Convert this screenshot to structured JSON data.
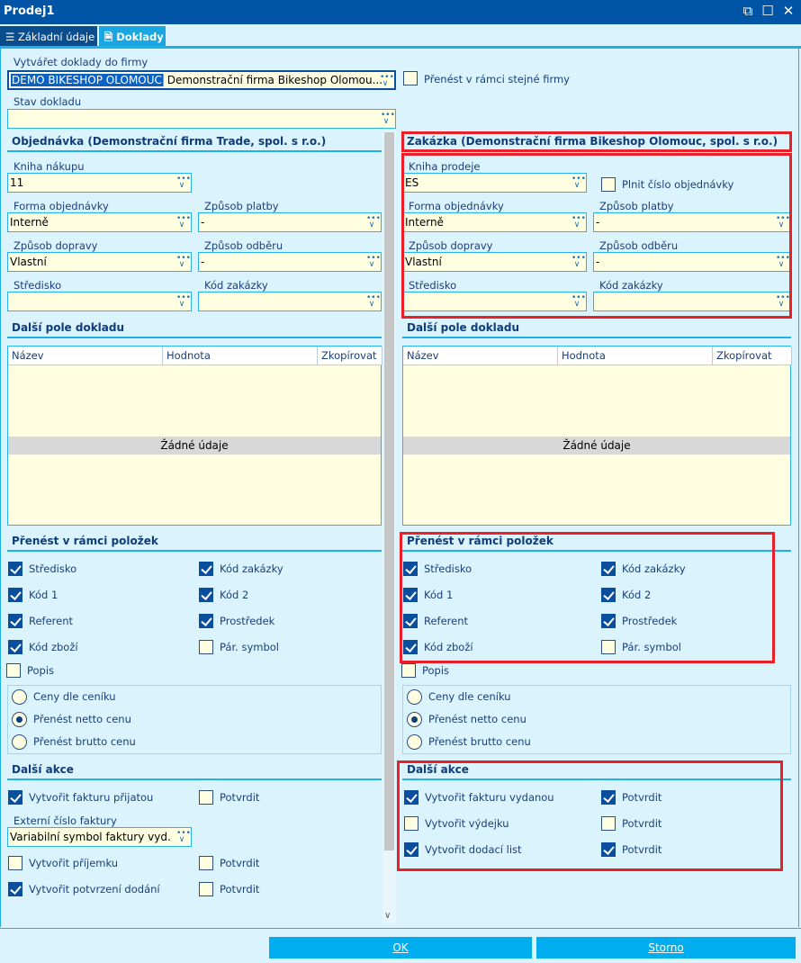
{
  "window": {
    "title": "Prodej1",
    "controls": [
      {
        "icon": "restore-icon"
      },
      {
        "icon": "maximize-icon"
      },
      {
        "icon": "close-icon"
      }
    ]
  },
  "tabs": [
    {
      "label": "Základní údaje",
      "icon": "list-icon",
      "active": false
    },
    {
      "label": "Doklady",
      "icon": "document-icon",
      "active": true
    }
  ],
  "firm": {
    "label": "Vytvářet doklady do firmy",
    "code": "DEMO BIKESHOP OLOMOUC",
    "name": "Demonstrační firma Bikeshop Olomou...",
    "transfer_label": "Přenést v rámci stejné firmy",
    "transfer_checked": false
  },
  "status": {
    "label": "Stav dokladu",
    "value": ""
  },
  "order": {
    "header": "Objednávka (Demonstrační firma Trade, spol. s r.o.)",
    "book": {
      "label": "Kniha nákupu",
      "value": "11"
    },
    "form": {
      "label": "Forma objednávky",
      "value": "Interně"
    },
    "payment": {
      "label": "Způsob platby",
      "value": "-"
    },
    "transport": {
      "label": "Způsob dopravy",
      "value": "Vlastní"
    },
    "pickup": {
      "label": "Způsob odběru",
      "value": "-"
    },
    "center": {
      "label": "Středisko",
      "value": ""
    },
    "job_code": {
      "label": "Kód zakázky",
      "value": ""
    }
  },
  "job": {
    "header": "Zakázka (Demonstrační firma Bikeshop Olomouc, spol. s r.o.)",
    "book": {
      "label": "Kniha prodeje",
      "value": "ES"
    },
    "fill_order": {
      "label": "Plnit číslo objednávky",
      "checked": false
    },
    "form": {
      "label": "Forma objednávky",
      "value": "Interně"
    },
    "payment": {
      "label": "Způsob platby",
      "value": "-"
    },
    "transport": {
      "label": "Způsob dopravy",
      "value": "Vlastní"
    },
    "pickup": {
      "label": "Způsob odběru",
      "value": "-"
    },
    "center": {
      "label": "Středisko",
      "value": ""
    },
    "job_code": {
      "label": "Kód zakázky",
      "value": ""
    }
  },
  "fields_left": {
    "header": "Další pole dokladu",
    "columns": [
      "Název",
      "Hodnota",
      "Zkopírovat"
    ],
    "empty": "Žádné údaje"
  },
  "fields_right": {
    "header": "Další pole dokladu",
    "columns": [
      "Název",
      "Hodnota",
      "Zkopírovat"
    ],
    "empty": "Žádné údaje"
  },
  "items_left": {
    "header": "Přenést v rámci položek",
    "checks": [
      {
        "label": "Středisko",
        "checked": true
      },
      {
        "label": "Kód zakázky",
        "checked": true
      },
      {
        "label": "Kód 1",
        "checked": true
      },
      {
        "label": "Kód 2",
        "checked": true
      },
      {
        "label": "Referent",
        "checked": true
      },
      {
        "label": "Prostředek",
        "checked": true
      },
      {
        "label": "Kód zboží",
        "checked": true
      },
      {
        "label": "Pár. symbol",
        "checked": false
      },
      {
        "label": "Popis",
        "checked": false
      }
    ],
    "radios": [
      {
        "label": "Ceny dle ceníku",
        "selected": false
      },
      {
        "label": "Přenést netto cenu",
        "selected": true
      },
      {
        "label": "Přenést brutto cenu",
        "selected": false
      }
    ]
  },
  "items_right": {
    "header": "Přenést v rámci položek",
    "checks": [
      {
        "label": "Středisko",
        "checked": true
      },
      {
        "label": "Kód zakázky",
        "checked": true
      },
      {
        "label": "Kód 1",
        "checked": true
      },
      {
        "label": "Kód 2",
        "checked": true
      },
      {
        "label": "Referent",
        "checked": true
      },
      {
        "label": "Prostředek",
        "checked": true
      },
      {
        "label": "Kód zboží",
        "checked": true
      },
      {
        "label": "Pár. symbol",
        "checked": false
      },
      {
        "label": "Popis",
        "checked": false
      }
    ],
    "radios": [
      {
        "label": "Ceny dle ceníku",
        "selected": false
      },
      {
        "label": "Přenést netto cenu",
        "selected": true
      },
      {
        "label": "Přenést brutto cenu",
        "selected": false
      }
    ]
  },
  "actions_left": {
    "header": "Další akce",
    "invoice": {
      "label": "Vytvořit fakturu přijatou",
      "checked": true
    },
    "invoice_confirm": {
      "label": "Potvrdit",
      "checked": false
    },
    "ext_number": {
      "label": "Externí číslo faktury",
      "value": "Variabilní symbol faktury vyd."
    },
    "receipt": {
      "label": "Vytvořit příjemku",
      "checked": false
    },
    "receipt_confirm": {
      "label": "Potvrdit",
      "checked": false
    },
    "delivery_confirm_doc": {
      "label": "Vytvořit potvrzení dodání",
      "checked": true
    },
    "delivery_confirm_confirm": {
      "label": "Potvrdit",
      "checked": false
    }
  },
  "actions_right": {
    "header": "Další akce",
    "invoice": {
      "label": "Vytvořit fakturu vydanou",
      "checked": true
    },
    "invoice_confirm": {
      "label": "Potvrdit",
      "checked": true
    },
    "issue": {
      "label": "Vytvořit výdejku",
      "checked": false
    },
    "issue_confirm": {
      "label": "Potvrdit",
      "checked": false
    },
    "delivery": {
      "label": "Vytvořit dodací list",
      "checked": true
    },
    "delivery_confirm": {
      "label": "Potvrdit",
      "checked": true
    }
  },
  "buttons": {
    "ok": "OK",
    "cancel": "Storno"
  },
  "colors": {
    "titlebar": "#0054a6",
    "accent": "#00aeef",
    "highlight": "#e8202a",
    "field": "#fffee0"
  }
}
